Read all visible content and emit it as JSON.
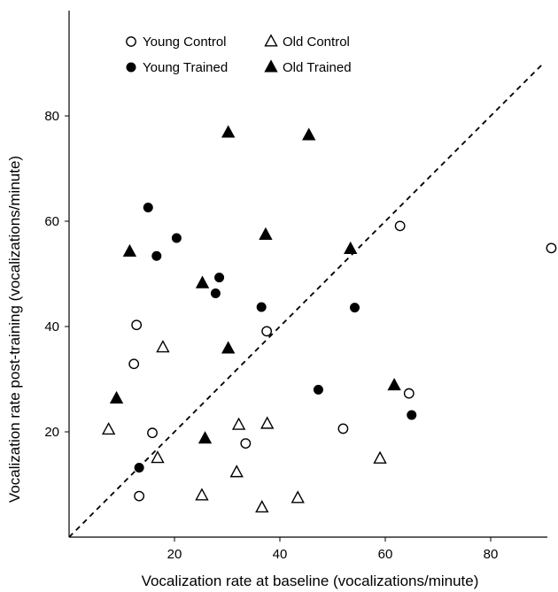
{
  "chart_data": {
    "type": "scatter",
    "title": "",
    "xlabel": "Vocalization rate at baseline (vocalizations/minute)",
    "ylabel": "Vocalization rate post-training (vocalizations/minute)",
    "xlim": [
      0,
      93
    ],
    "ylim": [
      0,
      90
    ],
    "xticks": [
      20,
      40,
      60,
      80
    ],
    "yticks": [
      20,
      40,
      60,
      80
    ],
    "grid": false,
    "legend_position": "top-left",
    "reference_line": {
      "style": "dashed",
      "x": [
        0,
        90
      ],
      "y": [
        0,
        90
      ]
    },
    "series": [
      {
        "name": "Young Control",
        "marker": "circle-open",
        "color": "#000000",
        "points": [
          {
            "x": 12.8,
            "y": 40.3
          },
          {
            "x": 12.3,
            "y": 32.9
          },
          {
            "x": 15.8,
            "y": 19.8
          },
          {
            "x": 13.3,
            "y": 7.8
          },
          {
            "x": 33.5,
            "y": 17.8
          },
          {
            "x": 37.5,
            "y": 39.1
          },
          {
            "x": 52.0,
            "y": 20.6
          },
          {
            "x": 62.8,
            "y": 59.1
          },
          {
            "x": 64.5,
            "y": 27.3
          },
          {
            "x": 91.5,
            "y": 54.9
          }
        ]
      },
      {
        "name": "Young Trained",
        "marker": "circle-filled",
        "color": "#000000",
        "points": [
          {
            "x": 15.0,
            "y": 62.6
          },
          {
            "x": 16.6,
            "y": 53.4
          },
          {
            "x": 20.4,
            "y": 56.8
          },
          {
            "x": 28.5,
            "y": 49.3
          },
          {
            "x": 27.8,
            "y": 46.3
          },
          {
            "x": 36.5,
            "y": 43.7
          },
          {
            "x": 13.3,
            "y": 13.2
          },
          {
            "x": 47.3,
            "y": 28.0
          },
          {
            "x": 54.2,
            "y": 43.6
          },
          {
            "x": 65.0,
            "y": 23.2
          }
        ]
      },
      {
        "name": "Old Control",
        "marker": "triangle-open",
        "color": "#000000",
        "points": [
          {
            "x": 7.5,
            "y": 20.4
          },
          {
            "x": 16.8,
            "y": 15.0
          },
          {
            "x": 17.8,
            "y": 36.0
          },
          {
            "x": 25.2,
            "y": 7.9
          },
          {
            "x": 31.8,
            "y": 12.3
          },
          {
            "x": 32.2,
            "y": 21.3
          },
          {
            "x": 36.6,
            "y": 5.6
          },
          {
            "x": 37.6,
            "y": 21.5
          },
          {
            "x": 43.4,
            "y": 7.4
          },
          {
            "x": 59.0,
            "y": 14.9
          }
        ]
      },
      {
        "name": "Old Trained",
        "marker": "triangle-filled",
        "color": "#000000",
        "points": [
          {
            "x": 9.0,
            "y": 26.3
          },
          {
            "x": 11.5,
            "y": 54.2
          },
          {
            "x": 25.3,
            "y": 48.2
          },
          {
            "x": 25.8,
            "y": 18.7
          },
          {
            "x": 30.2,
            "y": 35.8
          },
          {
            "x": 30.2,
            "y": 76.8
          },
          {
            "x": 37.3,
            "y": 57.4
          },
          {
            "x": 45.5,
            "y": 76.3
          },
          {
            "x": 53.4,
            "y": 54.7
          },
          {
            "x": 61.7,
            "y": 28.8
          }
        ]
      }
    ]
  }
}
